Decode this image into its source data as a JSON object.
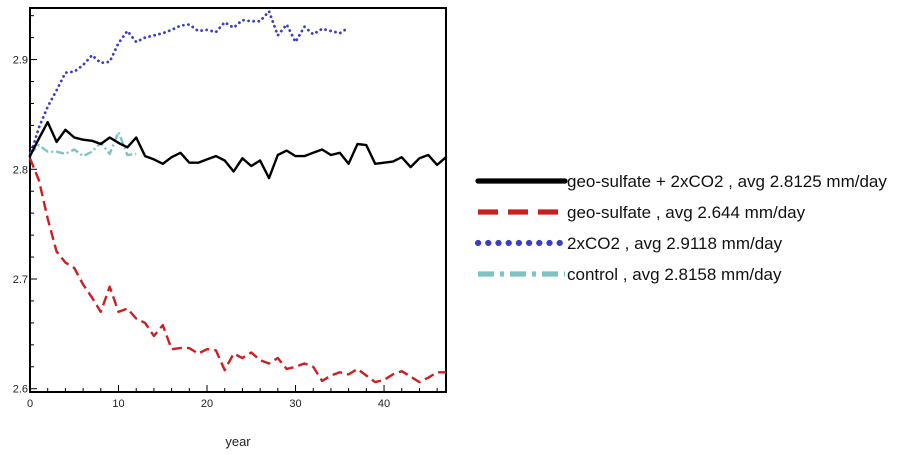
{
  "chart_data": {
    "type": "line",
    "title": "",
    "xlabel": "year",
    "ylabel": "",
    "xlim": [
      0,
      47
    ],
    "ylim": [
      2.597,
      2.947
    ],
    "x_ticks": [
      0,
      10,
      20,
      30,
      40
    ],
    "y_ticks": [
      2.6,
      2.7,
      2.8,
      2.9
    ],
    "y_tick_labels": [
      "2.6",
      "2.7",
      "2.8",
      "2.9"
    ],
    "grid": false,
    "legend_position": "right",
    "series": [
      {
        "name": "geo-sulfate + 2xCO2 , avg 2.8125 mm/day",
        "color": "#000000",
        "line_style": "solid",
        "x": [
          0,
          1,
          2,
          3,
          4,
          5,
          6,
          7,
          8,
          9,
          10,
          11,
          12,
          13,
          14,
          15,
          16,
          17,
          18,
          19,
          20,
          21,
          22,
          23,
          24,
          25,
          26,
          27,
          28,
          29,
          30,
          31,
          32,
          33,
          34,
          35,
          36,
          37,
          38,
          39,
          40,
          41,
          42,
          43,
          44,
          45,
          46,
          47
        ],
        "values": [
          2.812,
          2.828,
          2.843,
          2.825,
          2.836,
          2.829,
          2.827,
          2.826,
          2.823,
          2.829,
          2.824,
          2.82,
          2.829,
          2.812,
          2.809,
          2.805,
          2.811,
          2.815,
          2.806,
          2.806,
          2.809,
          2.812,
          2.808,
          2.798,
          2.81,
          2.803,
          2.808,
          2.792,
          2.813,
          2.817,
          2.812,
          2.812,
          2.815,
          2.818,
          2.813,
          2.815,
          2.805,
          2.823,
          2.822,
          2.805,
          2.806,
          2.807,
          2.811,
          2.802,
          2.81,
          2.813,
          2.804,
          2.811
        ]
      },
      {
        "name": "geo-sulfate , avg 2.644 mm/day",
        "color": "#cc1f1f",
        "line_style": "dashed",
        "x": [
          0,
          1,
          2,
          3,
          4,
          5,
          6,
          7,
          8,
          9,
          10,
          11,
          12,
          13,
          14,
          15,
          16,
          17,
          18,
          19,
          20,
          21,
          22,
          23,
          24,
          25,
          26,
          27,
          28,
          29,
          30,
          31,
          32,
          33,
          34,
          35,
          36,
          37,
          38,
          39,
          40,
          41,
          42,
          43,
          44,
          45,
          46,
          47
        ],
        "values": [
          2.81,
          2.79,
          2.755,
          2.725,
          2.715,
          2.71,
          2.695,
          2.683,
          2.67,
          2.693,
          2.67,
          2.673,
          2.664,
          2.66,
          2.648,
          2.658,
          2.636,
          2.637,
          2.637,
          2.632,
          2.636,
          2.635,
          2.617,
          2.632,
          2.628,
          2.633,
          2.626,
          2.623,
          2.628,
          2.618,
          2.62,
          2.623,
          2.62,
          2.607,
          2.612,
          2.615,
          2.613,
          2.618,
          2.612,
          2.606,
          2.608,
          2.613,
          2.616,
          2.611,
          2.606,
          2.61,
          2.615,
          2.615
        ]
      },
      {
        "name": "2xCO2 , avg 2.9118 mm/day",
        "color": "#3b3fc2",
        "line_style": "dotted",
        "x": [
          0,
          1,
          2,
          3,
          4,
          5,
          6,
          7,
          8,
          9,
          10,
          11,
          12,
          13,
          14,
          15,
          16,
          17,
          18,
          19,
          20,
          21,
          22,
          23,
          24,
          25,
          26,
          27,
          28,
          29,
          30,
          31,
          32,
          33,
          34,
          35,
          36
        ],
        "values": [
          2.812,
          2.838,
          2.857,
          2.872,
          2.888,
          2.889,
          2.895,
          2.904,
          2.897,
          2.898,
          2.915,
          2.926,
          2.916,
          2.92,
          2.922,
          2.924,
          2.927,
          2.931,
          2.932,
          2.926,
          2.927,
          2.925,
          2.934,
          2.929,
          2.936,
          2.935,
          2.935,
          2.944,
          2.922,
          2.932,
          2.916,
          2.93,
          2.923,
          2.928,
          2.926,
          2.924,
          2.929
        ]
      },
      {
        "name": "control , avg 2.8158 mm/day",
        "color": "#7fc4c4",
        "line_style": "dashdot",
        "x": [
          0,
          1,
          2,
          3,
          4,
          5,
          6,
          7,
          8,
          9,
          10,
          11,
          12
        ],
        "values": [
          2.814,
          2.822,
          2.816,
          2.816,
          2.814,
          2.818,
          2.812,
          2.816,
          2.824,
          2.814,
          2.834,
          2.813,
          2.814
        ]
      }
    ]
  }
}
